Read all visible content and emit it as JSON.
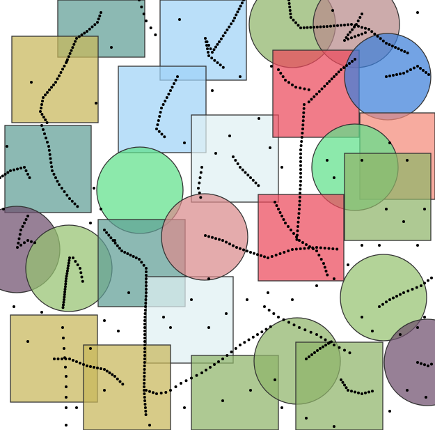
{
  "background": "#ffffff",
  "stroke_color": "#333333",
  "dot_color": "#000000",
  "palette": {
    "teal": "#5f9e95",
    "olive": "#c8b75a",
    "sky": "#9fd3f7",
    "pale_blue": "#dff0f2",
    "sage": "#8fb46a",
    "red": "#ec4a5c",
    "salmon": "#f48a7a",
    "mint": "#5fe08a",
    "rose": "#d98a8c",
    "plum": "#6f4f6e",
    "blue": "#3d7fd9",
    "mauve": "#b88a8a",
    "green_light": "#96c270"
  }
}
